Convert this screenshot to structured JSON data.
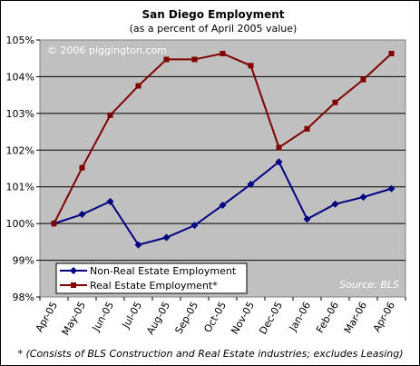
{
  "chart_data": {
    "type": "line",
    "title": "San Diego Employment",
    "subtitle": "(as a percent of April 2005 value)",
    "watermark": "© 2006 piggington.com",
    "source": "Source: BLS",
    "footnote": "* (Consists of BLS Construction and Real Estate industries; excludes Leasing)",
    "categories": [
      "Apr-05",
      "May-05",
      "Jun-05",
      "Jul-05",
      "Aug-05",
      "Sep-05",
      "Oct-05",
      "Nov-05",
      "Dec-05",
      "Jan-06",
      "Feb-06",
      "Mar-06",
      "Apr-06"
    ],
    "yticks": [
      "98%",
      "99%",
      "100%",
      "101%",
      "102%",
      "103%",
      "104%",
      "105%"
    ],
    "ylim": [
      98,
      105
    ],
    "grid": true,
    "legend_position": "bottom-left",
    "series": [
      {
        "name": "Non-Real Estate Employment",
        "color": "#000080",
        "marker": "diamond",
        "values": [
          100.0,
          100.25,
          100.6,
          99.42,
          99.62,
          99.95,
          100.5,
          101.07,
          101.68,
          100.12,
          100.53,
          100.72,
          100.95
        ]
      },
      {
        "name": "Real Estate Employment*",
        "color": "#800000",
        "marker": "square",
        "values": [
          100.0,
          101.52,
          102.95,
          103.75,
          104.47,
          104.47,
          104.63,
          104.3,
          102.07,
          102.58,
          103.3,
          103.92,
          104.63
        ]
      }
    ]
  }
}
